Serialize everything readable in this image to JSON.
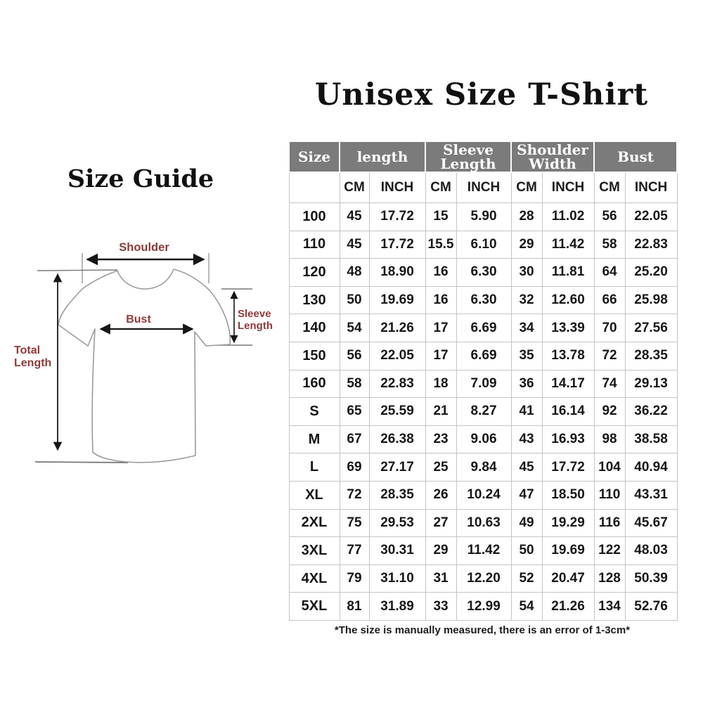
{
  "page": {
    "title": "Unisex Size T-Shirt",
    "size_guide_title": "Size Guide",
    "footnote": "*The size is manually measured, there is an error of 1-3cm*"
  },
  "diagram": {
    "shoulder_label": "Shoulder",
    "bust_label": "Bust",
    "sleeve_length_label": [
      "Sleeve",
      "Length"
    ],
    "total_length_label": [
      "Total",
      "Length"
    ]
  },
  "table": {
    "group_headers": [
      {
        "label": "Size"
      },
      {
        "label": "length"
      },
      {
        "label": "Sleeve Length"
      },
      {
        "label": "Shoulder Width"
      },
      {
        "label": "Bust"
      }
    ],
    "unit_headers": [
      "CM",
      "INCH",
      "CM",
      "INCH",
      "CM",
      "INCH",
      "CM",
      "INCH"
    ],
    "rows": [
      {
        "size": "100",
        "values": [
          "45",
          "17.72",
          "15",
          "5.90",
          "28",
          "11.02",
          "56",
          "22.05"
        ]
      },
      {
        "size": "110",
        "values": [
          "45",
          "17.72",
          "15.5",
          "6.10",
          "29",
          "11.42",
          "58",
          "22.83"
        ]
      },
      {
        "size": "120",
        "values": [
          "48",
          "18.90",
          "16",
          "6.30",
          "30",
          "11.81",
          "64",
          "25.20"
        ]
      },
      {
        "size": "130",
        "values": [
          "50",
          "19.69",
          "16",
          "6.30",
          "32",
          "12.60",
          "66",
          "25.98"
        ]
      },
      {
        "size": "140",
        "values": [
          "54",
          "21.26",
          "17",
          "6.69",
          "34",
          "13.39",
          "70",
          "27.56"
        ]
      },
      {
        "size": "150",
        "values": [
          "56",
          "22.05",
          "17",
          "6.69",
          "35",
          "13.78",
          "72",
          "28.35"
        ]
      },
      {
        "size": "160",
        "values": [
          "58",
          "22.83",
          "18",
          "7.09",
          "36",
          "14.17",
          "74",
          "29.13"
        ]
      },
      {
        "size": "S",
        "values": [
          "65",
          "25.59",
          "21",
          "8.27",
          "41",
          "16.14",
          "92",
          "36.22"
        ]
      },
      {
        "size": "M",
        "values": [
          "67",
          "26.38",
          "23",
          "9.06",
          "43",
          "16.93",
          "98",
          "38.58"
        ]
      },
      {
        "size": "L",
        "values": [
          "69",
          "27.17",
          "25",
          "9.84",
          "45",
          "17.72",
          "104",
          "40.94"
        ]
      },
      {
        "size": "XL",
        "values": [
          "72",
          "28.35",
          "26",
          "10.24",
          "47",
          "18.50",
          "110",
          "43.31"
        ]
      },
      {
        "size": "2XL",
        "values": [
          "75",
          "29.53",
          "27",
          "10.63",
          "49",
          "19.29",
          "116",
          "45.67"
        ]
      },
      {
        "size": "3XL",
        "values": [
          "77",
          "30.31",
          "29",
          "11.42",
          "50",
          "19.69",
          "122",
          "48.03"
        ]
      },
      {
        "size": "4XL",
        "values": [
          "79",
          "31.10",
          "31",
          "12.20",
          "52",
          "20.47",
          "128",
          "50.39"
        ]
      },
      {
        "size": "5XL",
        "values": [
          "81",
          "31.89",
          "33",
          "12.99",
          "54",
          "21.26",
          "134",
          "52.76"
        ]
      }
    ]
  },
  "colors": {
    "header_bg": "#7b7b7b",
    "header_text": "#ffffff",
    "diagram_label": "#8e3a3a",
    "shirt_outline": "#9b9b9b",
    "arrow": "#161616",
    "table_border": "#c4c4c4"
  }
}
